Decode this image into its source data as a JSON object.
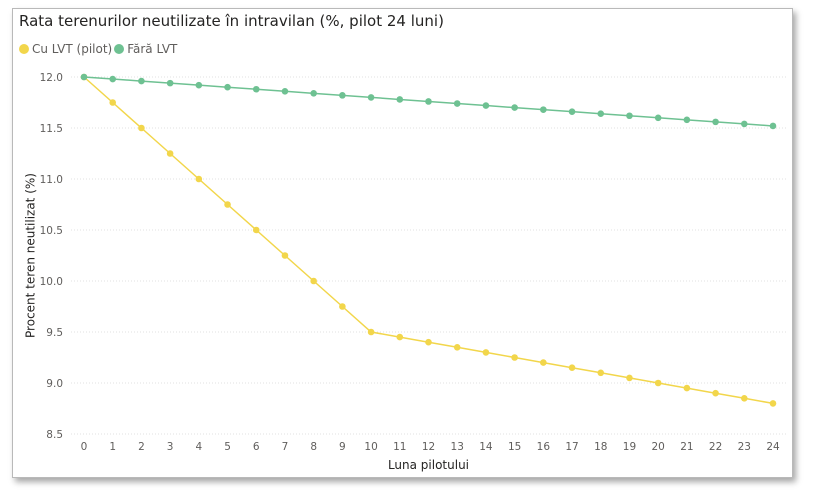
{
  "chart_data": {
    "type": "line",
    "title": "Rata terenurilor neutilizate în intravilan (%, pilot 24 luni)",
    "xlabel": "Luna pilotului",
    "ylabel": "Procent teren neutilizat (%)",
    "x": [
      0,
      1,
      2,
      3,
      4,
      5,
      6,
      7,
      8,
      9,
      10,
      11,
      12,
      13,
      14,
      15,
      16,
      17,
      18,
      19,
      20,
      21,
      22,
      23,
      24
    ],
    "x_tick_labels": [
      "0",
      "1",
      "2",
      "3",
      "4",
      "5",
      "6",
      "7",
      "8",
      "9",
      "10",
      "11",
      "12",
      "13",
      "14",
      "15",
      "16",
      "17",
      "18",
      "19",
      "20",
      "21",
      "22",
      "23",
      "24"
    ],
    "ylim": [
      8.5,
      12.0
    ],
    "y_ticks": [
      8.5,
      9.0,
      9.5,
      10.0,
      10.5,
      11.0,
      11.5,
      12.0
    ],
    "y_tick_labels": [
      "8.5",
      "9.0",
      "9.5",
      "10.0",
      "10.5",
      "11.0",
      "11.5",
      "12.0"
    ],
    "grid": "horizontal",
    "legend_position": "top-left",
    "series": [
      {
        "name": "Cu LVT (pilot)",
        "color": "#f2d64b",
        "values": [
          12.0,
          11.75,
          11.5,
          11.25,
          11.0,
          10.75,
          10.5,
          10.25,
          10.0,
          9.75,
          9.5,
          9.45,
          9.4,
          9.35,
          9.3,
          9.25,
          9.2,
          9.15,
          9.1,
          9.05,
          9.0,
          8.95,
          8.9,
          8.85,
          8.8
        ]
      },
      {
        "name": "Fără LVT",
        "color": "#6ec192",
        "values": [
          12.0,
          11.98,
          11.96,
          11.94,
          11.92,
          11.9,
          11.88,
          11.86,
          11.84,
          11.82,
          11.8,
          11.78,
          11.76,
          11.74,
          11.72,
          11.7,
          11.68,
          11.66,
          11.64,
          11.62,
          11.6,
          11.58,
          11.56,
          11.54,
          11.52
        ]
      }
    ]
  }
}
